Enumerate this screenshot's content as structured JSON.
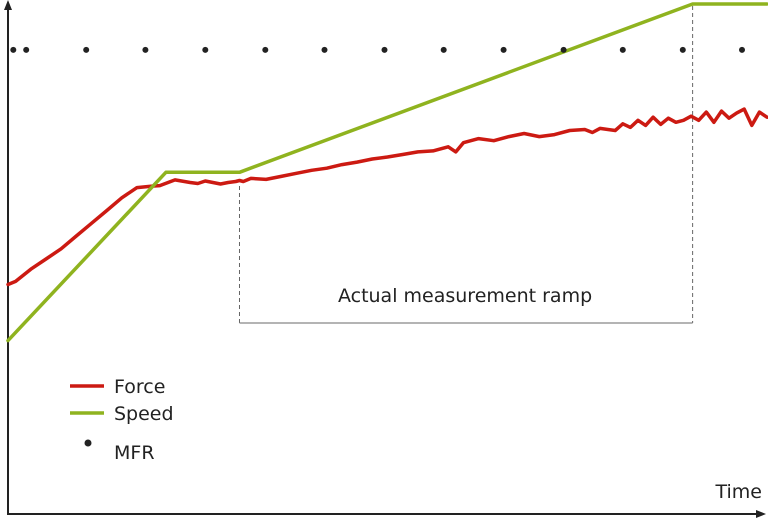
{
  "chart_data": {
    "type": "line",
    "xlabel": "Time",
    "ylabel": "",
    "title": "",
    "xlim": [
      0,
      100
    ],
    "ylim": [
      0,
      100
    ],
    "grid": false,
    "legend_position": "bottom-left",
    "annotation": {
      "text": "Actual measurement ramp",
      "x_start": 30.5,
      "x_end": 90.2
    },
    "series": [
      {
        "name": "Force",
        "style": "line",
        "color": "#cc1a12",
        "x": [
          0,
          1,
          3,
          5,
          7,
          9,
          11,
          13,
          15,
          17,
          19,
          20,
          22,
          24,
          25,
          26,
          27,
          28,
          29,
          30,
          30.5,
          31,
          32,
          34,
          36,
          38,
          40,
          42,
          44,
          46,
          48,
          50,
          52,
          54,
          56,
          58,
          59,
          60,
          62,
          64,
          66,
          68,
          70,
          72,
          74,
          76,
          77,
          78,
          80,
          81,
          82,
          83,
          84,
          85,
          86,
          87,
          88,
          89,
          90,
          91,
          92,
          93,
          94,
          95,
          96,
          97,
          98,
          99,
          100
        ],
        "y": [
          45,
          45.6,
          48,
          50,
          52,
          54.5,
          57,
          59.5,
          62,
          64,
          64.3,
          64.4,
          65.5,
          65,
          64.8,
          65.3,
          65,
          64.7,
          65,
          65.2,
          65.4,
          65.2,
          65.8,
          65.6,
          66.2,
          66.8,
          67.4,
          67.8,
          68.5,
          69,
          69.6,
          70,
          70.5,
          71,
          71.2,
          72,
          71,
          72.8,
          73.6,
          73.2,
          74,
          74.6,
          74,
          74.4,
          75.2,
          75.4,
          74.8,
          75.6,
          75.2,
          76.5,
          75.8,
          77.2,
          76.2,
          77.8,
          76.4,
          77.6,
          76.8,
          77.2,
          78,
          77.2,
          78.8,
          76.8,
          79,
          77.6,
          78.6,
          79.4,
          76.2,
          78.8,
          77.8
        ]
      },
      {
        "name": "Speed",
        "style": "line",
        "color": "#8fb31f",
        "x": [
          0,
          20.8,
          30.5,
          90.2,
          100
        ],
        "y": [
          34,
          67,
          67,
          100,
          100
        ]
      },
      {
        "name": "MFR",
        "style": "scatter",
        "color": "#222222",
        "x": [
          0.7,
          2.4,
          10.3,
          18.1,
          26.0,
          33.9,
          41.7,
          49.6,
          57.4,
          65.3,
          73.2,
          81.0,
          88.9,
          96.7
        ],
        "y": [
          91,
          91,
          91,
          91,
          91,
          91,
          91,
          91,
          91,
          91,
          91,
          91,
          91,
          91
        ]
      }
    ]
  }
}
